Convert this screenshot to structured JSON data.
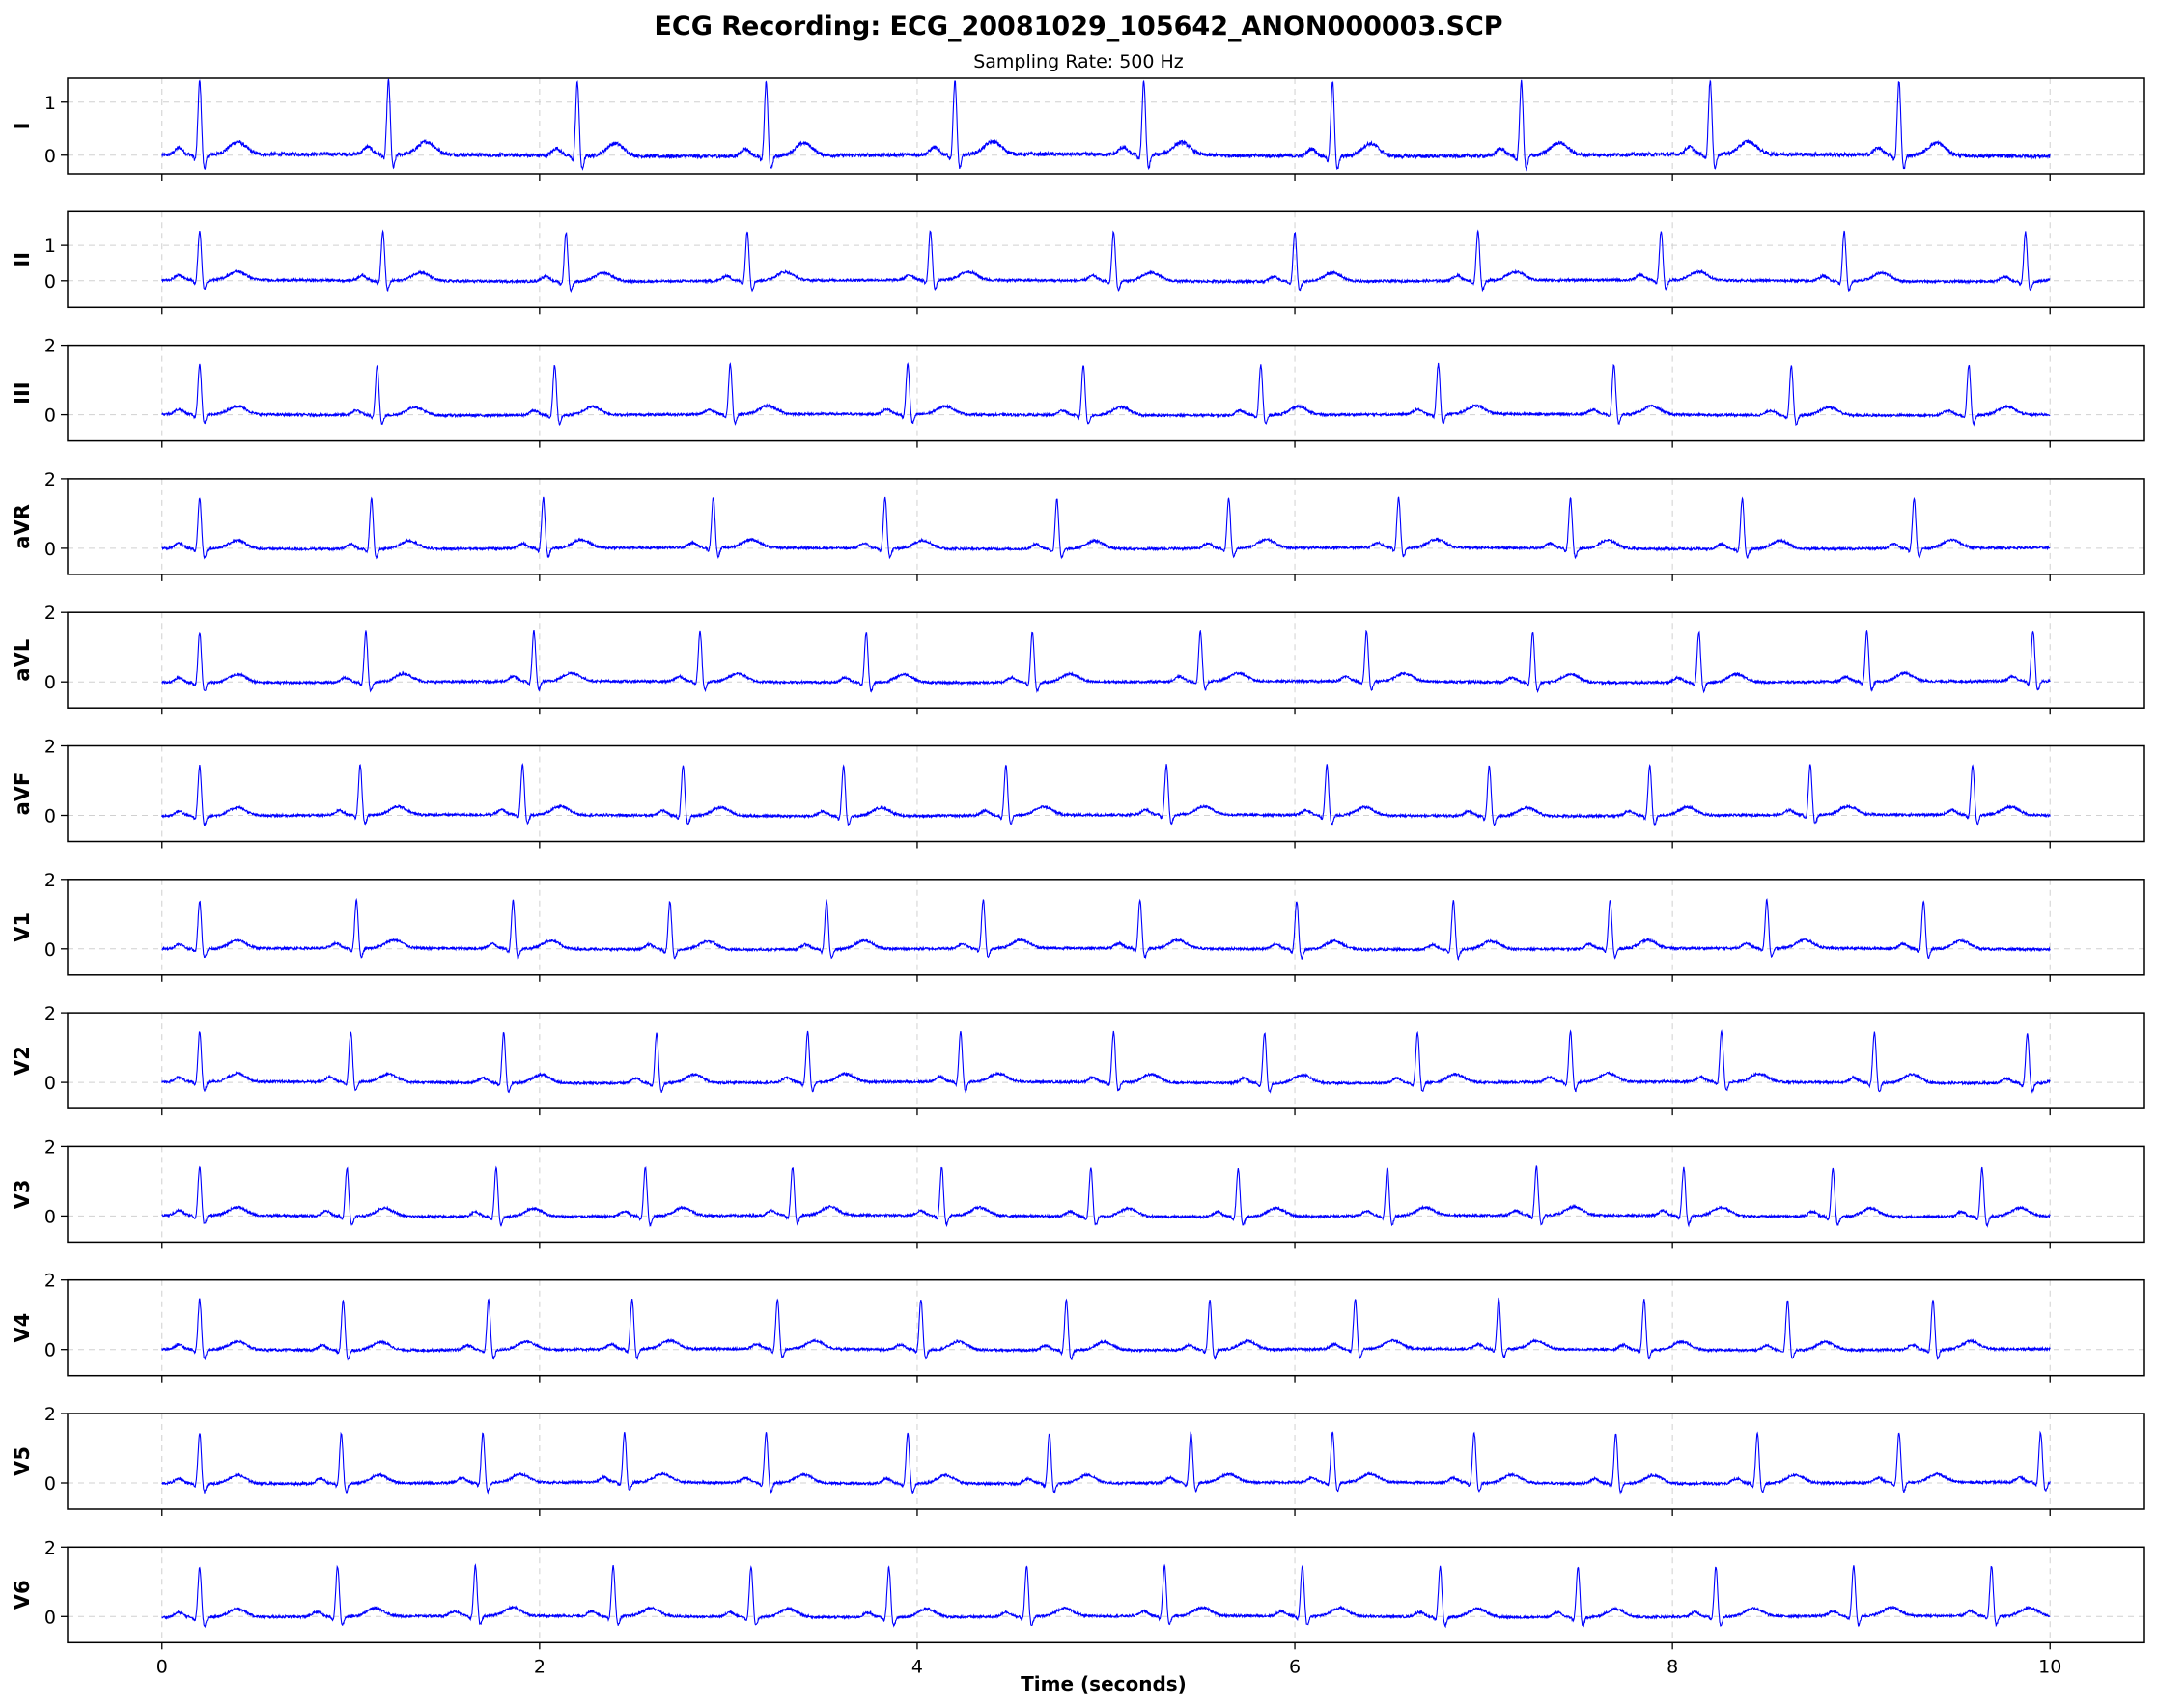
{
  "chart_data": {
    "type": "line",
    "title": "ECG Recording: ECG_20081029_105642_ANON000003.SCP",
    "subtitle": "Sampling Rate: 500 Hz",
    "xlabel": "Time (seconds)",
    "xlim": [
      -0.5,
      10.5
    ],
    "xticks": [
      0,
      2,
      4,
      6,
      8,
      10
    ],
    "grid": true,
    "line_color": "#0000ff",
    "duration_s": 10,
    "sampling_rate_hz": 500,
    "leads": [
      {
        "name": "I",
        "ylim": [
          -0.35,
          1.45
        ],
        "yticks": [
          0,
          1
        ],
        "r_amplitude": 1.4,
        "beats": [
          0.2,
          1.2,
          2.2,
          3.2,
          4.2,
          5.2,
          6.2,
          7.2,
          8.2,
          9.2
        ]
      },
      {
        "name": "II",
        "ylim": [
          -0.75,
          1.95
        ],
        "yticks": [
          0,
          1
        ],
        "r_amplitude": 1.4,
        "beats": [
          0.2,
          1.17,
          2.14,
          3.1,
          4.07,
          5.04,
          6.0,
          6.97,
          7.94,
          8.91,
          9.87
        ]
      },
      {
        "name": "III",
        "ylim": [
          -0.75,
          2.0
        ],
        "yticks": [
          0,
          2
        ],
        "r_amplitude": 1.45,
        "beats": [
          0.2,
          1.14,
          2.08,
          3.01,
          3.95,
          4.88,
          5.82,
          6.76,
          7.69,
          8.63,
          9.57
        ]
      },
      {
        "name": "aVR",
        "ylim": [
          -0.75,
          2.0
        ],
        "yticks": [
          0,
          2
        ],
        "r_amplitude": 1.45,
        "beats": [
          0.2,
          1.11,
          2.02,
          2.92,
          3.83,
          4.74,
          5.65,
          6.55,
          7.46,
          8.37,
          9.28
        ]
      },
      {
        "name": "aVL",
        "ylim": [
          -0.75,
          2.0
        ],
        "yticks": [
          0,
          2
        ],
        "r_amplitude": 1.45,
        "beats": [
          0.2,
          1.08,
          1.97,
          2.85,
          3.73,
          4.61,
          5.5,
          6.38,
          7.26,
          8.14,
          9.03,
          9.91
        ]
      },
      {
        "name": "aVF",
        "ylim": [
          -0.75,
          2.0
        ],
        "yticks": [
          0,
          2
        ],
        "r_amplitude": 1.45,
        "beats": [
          0.2,
          1.05,
          1.91,
          2.76,
          3.61,
          4.47,
          5.32,
          6.17,
          7.03,
          7.88,
          8.73,
          9.59
        ]
      },
      {
        "name": "V1",
        "ylim": [
          -0.75,
          2.0
        ],
        "yticks": [
          0,
          2
        ],
        "r_amplitude": 1.4,
        "beats": [
          0.2,
          1.03,
          1.86,
          2.69,
          3.52,
          4.35,
          5.18,
          6.01,
          6.84,
          7.67,
          8.5,
          9.33
        ]
      },
      {
        "name": "V2",
        "ylim": [
          -0.75,
          2.0
        ],
        "yticks": [
          0,
          2
        ],
        "r_amplitude": 1.45,
        "beats": [
          0.2,
          1.0,
          1.81,
          2.62,
          3.42,
          4.23,
          5.04,
          5.84,
          6.65,
          7.46,
          8.26,
          9.07,
          9.88
        ]
      },
      {
        "name": "V3",
        "ylim": [
          -0.75,
          2.0
        ],
        "yticks": [
          0,
          2
        ],
        "r_amplitude": 1.4,
        "beats": [
          0.2,
          0.98,
          1.77,
          2.56,
          3.34,
          4.13,
          4.92,
          5.7,
          6.49,
          7.28,
          8.06,
          8.85,
          9.64
        ]
      },
      {
        "name": "V4",
        "ylim": [
          -0.75,
          2.0
        ],
        "yticks": [
          0,
          2
        ],
        "r_amplitude": 1.45,
        "beats": [
          0.2,
          0.96,
          1.73,
          2.49,
          3.26,
          4.02,
          4.79,
          5.55,
          6.32,
          7.08,
          7.85,
          8.61,
          9.38
        ]
      },
      {
        "name": "V5",
        "ylim": [
          -0.75,
          2.0
        ],
        "yticks": [
          0,
          2
        ],
        "r_amplitude": 1.45,
        "beats": [
          0.2,
          0.95,
          1.7,
          2.45,
          3.2,
          3.95,
          4.7,
          5.45,
          6.2,
          6.95,
          7.7,
          8.45,
          9.2,
          9.95
        ]
      },
      {
        "name": "V6",
        "ylim": [
          -0.75,
          2.0
        ],
        "yticks": [
          0,
          2
        ],
        "r_amplitude": 1.45,
        "beats": [
          0.2,
          0.93,
          1.66,
          2.39,
          3.12,
          3.85,
          4.58,
          5.31,
          6.04,
          6.77,
          7.5,
          8.23,
          8.96,
          9.69
        ]
      }
    ]
  }
}
